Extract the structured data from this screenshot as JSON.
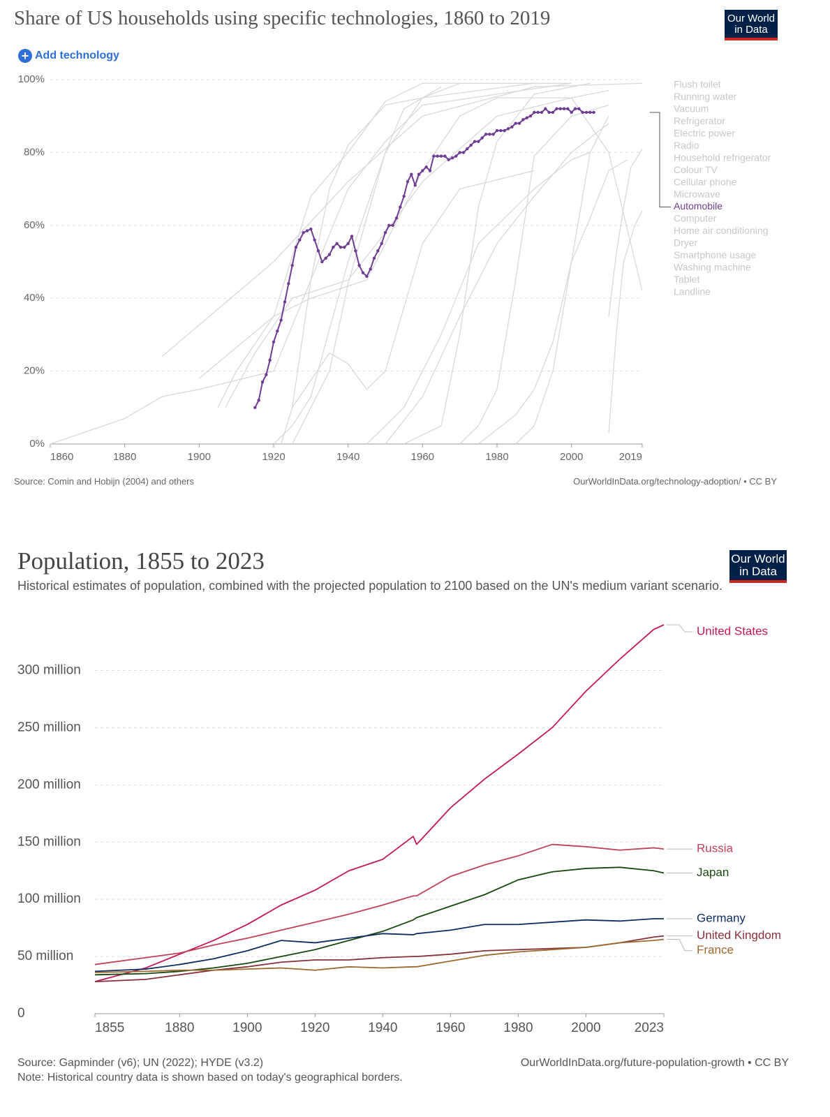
{
  "chart_data": [
    {
      "type": "line",
      "title": "Share of US households using specific technologies, 1860 to 2019",
      "logo": [
        "Our World",
        "in Data"
      ],
      "button": "Add technology",
      "source": "Source: Comin and Hobijn (2004) and others",
      "url": "OurWorldInData.org/technology-adoption/ • CC BY",
      "xlim": [
        1860,
        2019
      ],
      "ylim": [
        0,
        100
      ],
      "xticks": [
        1860,
        1880,
        1900,
        1920,
        1940,
        1960,
        1980,
        2000,
        2019
      ],
      "yticks": [
        {
          "value": 0,
          "label": "0%"
        },
        {
          "value": 20,
          "label": "20%"
        },
        {
          "value": 40,
          "label": "40%"
        },
        {
          "value": 60,
          "label": "60%"
        },
        {
          "value": 80,
          "label": "80%"
        },
        {
          "value": 100,
          "label": "100%"
        }
      ],
      "grid": true,
      "series": [
        {
          "name": "Flush toilet",
          "color": "#d9d9d9",
          "x": [
            1890,
            1920,
            1940,
            1960,
            1990,
            2019
          ],
          "values": [
            24,
            50,
            72,
            90,
            98,
            99
          ]
        },
        {
          "name": "Running water",
          "color": "#d9d9d9",
          "x": [
            1860,
            1880,
            1890,
            1900,
            1920,
            1940,
            1950,
            1960,
            2000
          ],
          "values": [
            0,
            7,
            13,
            15,
            20,
            70,
            83,
            93,
            99
          ]
        },
        {
          "name": "Vacuum",
          "color": "#d9d9d9",
          "x": [
            1907,
            1915,
            1925,
            1940,
            1950,
            1960,
            1980,
            2000,
            2010
          ],
          "values": [
            10,
            25,
            40,
            45,
            58,
            72,
            90,
            95,
            97
          ]
        },
        {
          "name": "Refrigerator",
          "color": "#d9d9d9",
          "x": [
            1925,
            1930,
            1935,
            1940,
            1950,
            1960,
            1970,
            2000
          ],
          "values": [
            0,
            10,
            20,
            44,
            80,
            95,
            99,
            99
          ]
        },
        {
          "name": "Electric power",
          "color": "#d9d9d9",
          "x": [
            1905,
            1910,
            1920,
            1930,
            1940,
            1950,
            1960,
            2000
          ],
          "values": [
            10,
            20,
            35,
            68,
            80,
            94,
            99,
            99
          ]
        },
        {
          "name": "Radio",
          "color": "#d9d9d9",
          "x": [
            1922,
            1925,
            1930,
            1935,
            1940,
            1950,
            1960,
            1990
          ],
          "values": [
            0,
            10,
            45,
            70,
            82,
            93,
            95,
            99
          ]
        },
        {
          "name": "Household refrigerator",
          "color": "#d9d9d9",
          "x": [
            1920,
            1925,
            1930,
            1940,
            1950,
            1955,
            1965
          ],
          "values": [
            0,
            5,
            13,
            50,
            80,
            92,
            98
          ]
        },
        {
          "name": "Colour TV",
          "color": "#d9d9d9",
          "x": [
            1955,
            1965,
            1970,
            1975,
            1980,
            1990,
            2000,
            2005
          ],
          "values": [
            0,
            5,
            30,
            65,
            83,
            96,
            98,
            99
          ]
        },
        {
          "name": "Cellular phone",
          "color": "#d9d9d9",
          "x": [
            1985,
            1990,
            1995,
            2000,
            2005,
            2010
          ],
          "values": [
            0,
            5,
            20,
            50,
            80,
            90
          ]
        },
        {
          "name": "Microwave",
          "color": "#d9d9d9",
          "x": [
            1970,
            1975,
            1980,
            1985,
            1990,
            2000,
            2010
          ],
          "values": [
            0,
            5,
            15,
            45,
            79,
            90,
            93
          ]
        },
        {
          "name": "Automobile",
          "color": "#6d3e91",
          "markers": true,
          "x": [
            1915,
            1916,
            1917,
            1918,
            1919,
            1920,
            1921,
            1922,
            1923,
            1924,
            1925,
            1926,
            1927,
            1928,
            1929,
            1930,
            1931,
            1932,
            1933,
            1934,
            1935,
            1936,
            1937,
            1938,
            1939,
            1940,
            1941,
            1942,
            1943,
            1944,
            1945,
            1946,
            1947,
            1948,
            1949,
            1950,
            1951,
            1952,
            1953,
            1954,
            1955,
            1956,
            1957,
            1958,
            1959,
            1960,
            1961,
            1962,
            1963,
            1964,
            1965,
            1966,
            1967,
            1968,
            1969,
            1970,
            1971,
            1972,
            1973,
            1974,
            1975,
            1976,
            1977,
            1978,
            1979,
            1980,
            1981,
            1982,
            1983,
            1984,
            1985,
            1986,
            1987,
            1988,
            1989,
            1990,
            1991,
            1992,
            1993,
            1994,
            1995,
            1996,
            1997,
            1998,
            1999,
            2000,
            2001,
            2002,
            2003,
            2004,
            2005,
            2006
          ],
          "values": [
            10,
            12,
            17,
            19,
            23,
            28,
            31,
            34,
            39,
            44,
            49,
            54,
            56,
            58,
            58.5,
            59,
            56,
            53,
            50,
            51,
            52,
            54,
            55,
            54,
            54,
            55,
            57,
            53,
            49,
            47,
            46,
            48,
            51,
            53,
            55,
            58,
            60,
            60,
            62,
            65,
            68,
            72,
            74,
            71,
            74,
            75,
            76,
            75,
            79,
            79,
            79,
            79,
            78,
            78.5,
            79,
            80,
            80,
            81,
            82,
            83,
            83,
            84,
            85,
            85,
            85,
            86,
            86,
            86,
            86.5,
            87,
            88,
            88,
            89,
            89.5,
            90,
            91,
            91,
            91,
            92,
            91,
            91,
            92,
            92,
            92,
            92,
            91,
            92,
            92,
            91,
            91,
            91,
            91
          ]
        },
        {
          "name": "Computer",
          "color": "#d9d9d9",
          "x": [
            1975,
            1985,
            1990,
            1995,
            2000,
            2005,
            2010,
            2015
          ],
          "values": [
            0,
            8,
            15,
            28,
            50,
            62,
            75,
            78
          ]
        },
        {
          "name": "Home air conditioning",
          "color": "#d9d9d9",
          "x": [
            1950,
            1960,
            1970,
            1980,
            1990,
            2000,
            2010
          ],
          "values": [
            0,
            13,
            35,
            55,
            68,
            80,
            88
          ]
        },
        {
          "name": "Dryer",
          "color": "#d9d9d9",
          "x": [
            1945,
            1955,
            1965,
            1975,
            1985,
            1990,
            2000,
            2005
          ],
          "values": [
            0,
            10,
            30,
            55,
            65,
            70,
            78,
            80
          ]
        },
        {
          "name": "Smartphone usage",
          "color": "#d9d9d9",
          "x": [
            2010,
            2012,
            2014,
            2016,
            2019
          ],
          "values": [
            35,
            52,
            65,
            76,
            81
          ]
        },
        {
          "name": "Washing machine",
          "color": "#d9d9d9",
          "x": [
            1925,
            1935,
            1940,
            1945,
            1950,
            1960,
            1970,
            1990
          ],
          "values": [
            10,
            25,
            22,
            15,
            20,
            55,
            70,
            75
          ]
        },
        {
          "name": "Tablet",
          "color": "#d9d9d9",
          "x": [
            2010,
            2012,
            2014,
            2017,
            2019
          ],
          "values": [
            3,
            30,
            50,
            60,
            64
          ]
        },
        {
          "name": "Landline",
          "color": "#d9d9d9",
          "x": [
            1900,
            1920,
            1930,
            1945,
            1960,
            1970,
            1980,
            1990,
            2000,
            2010,
            2019
          ],
          "values": [
            18,
            35,
            40,
            45,
            75,
            90,
            95,
            95,
            95,
            80,
            42
          ]
        }
      ]
    },
    {
      "type": "line",
      "title": "Population, 1855 to 2023",
      "subtitle": "Historical estimates of population, combined with the projected population to 2100 based on the UN's medium variant scenario.",
      "logo": [
        "Our World",
        "in Data"
      ],
      "source": "Source: Gapminder (v6); UN (2022); HYDE (v3.2)",
      "note": "Note: Historical country data is shown based on today's geographical borders.",
      "url": "OurWorldInData.org/future-population-growth • CC BY",
      "xlim": [
        1855,
        2023
      ],
      "ylim": [
        0,
        340000000
      ],
      "xticks": [
        1855,
        1880,
        1900,
        1920,
        1940,
        1960,
        1980,
        2000,
        2023
      ],
      "yticks": [
        0,
        {
          "value": 50000000,
          "label": "50 million"
        },
        {
          "value": 100000000,
          "label": "100 million"
        },
        {
          "value": 150000000,
          "label": "150 million"
        },
        {
          "value": 200000000,
          "label": "200 million"
        },
        {
          "value": 250000000,
          "label": "250 million"
        },
        {
          "value": 300000000,
          "label": "300 million"
        }
      ],
      "grid": true,
      "x": [
        1855,
        1870,
        1880,
        1890,
        1900,
        1910,
        1920,
        1930,
        1940,
        1949,
        1950,
        1960,
        1970,
        1980,
        1990,
        2000,
        2010,
        2020,
        2023
      ],
      "series": [
        {
          "name": "United States",
          "color": "#c2185b",
          "values": [
            28000000,
            40000000,
            52000000,
            64000000,
            78000000,
            95000000,
            108000000,
            125000000,
            135000000,
            155000000,
            148000000,
            180000000,
            205000000,
            227000000,
            250000000,
            282000000,
            310000000,
            336000000,
            340000000
          ]
        },
        {
          "name": "Russia",
          "color": "#c0425a",
          "values": [
            43000000,
            49000000,
            53000000,
            60000000,
            66000000,
            73000000,
            80000000,
            87000000,
            95000000,
            103000000,
            103000000,
            120000000,
            130000000,
            138000000,
            148000000,
            146000000,
            143000000,
            145000000,
            144000000
          ]
        },
        {
          "name": "Japan",
          "color": "#18470f",
          "values": [
            34000000,
            35000000,
            37000000,
            40000000,
            44000000,
            50000000,
            56000000,
            64000000,
            72000000,
            82000000,
            84000000,
            94000000,
            104000000,
            117000000,
            124000000,
            127000000,
            128000000,
            125000000,
            123000000
          ]
        },
        {
          "name": "Germany",
          "color": "#0f2c63",
          "values": [
            37000000,
            39000000,
            43000000,
            48000000,
            55000000,
            64000000,
            62000000,
            66000000,
            70000000,
            69000000,
            70000000,
            73000000,
            78000000,
            78000000,
            80000000,
            82000000,
            81000000,
            83000000,
            83000000
          ]
        },
        {
          "name": "United Kingdom",
          "color": "#883039",
          "values": [
            28000000,
            30000000,
            34000000,
            38000000,
            41000000,
            45000000,
            47000000,
            47000000,
            49000000,
            50000000,
            50000000,
            52000000,
            55000000,
            56000000,
            57000000,
            58000000,
            62000000,
            67000000,
            68000000
          ]
        },
        {
          "name": "France",
          "color": "#9a6a2e",
          "values": [
            36000000,
            37000000,
            38000000,
            38000000,
            39000000,
            40000000,
            38000000,
            41000000,
            40000000,
            41000000,
            41000000,
            46000000,
            51000000,
            54000000,
            56000000,
            58000000,
            62000000,
            64000000,
            65000000
          ]
        }
      ]
    }
  ]
}
